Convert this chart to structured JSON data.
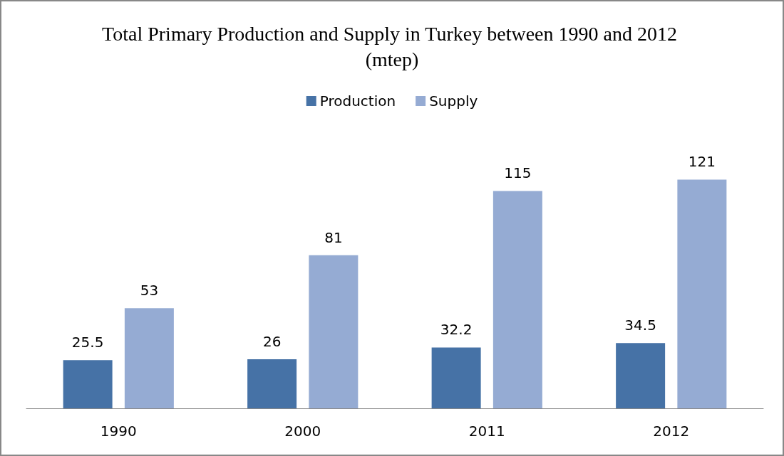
{
  "chart_data": {
    "type": "bar",
    "title": "Total Primary Production and Supply in Turkey between 1990 and 2012 (mtep)",
    "categories": [
      "1990",
      "2000",
      "2011",
      "2012"
    ],
    "series": [
      {
        "name": "Production",
        "color": "#4672a6",
        "values": [
          25.5,
          26,
          32.2,
          34.5
        ]
      },
      {
        "name": "Supply",
        "color": "#95abd3",
        "values": [
          53,
          81,
          115,
          121
        ]
      }
    ],
    "data_labels": true,
    "legend": "top"
  }
}
